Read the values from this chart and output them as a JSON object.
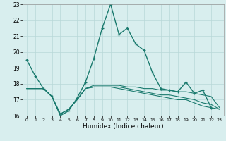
{
  "xlabel": "Humidex (Indice chaleur)",
  "xlim": [
    -0.5,
    23.5
  ],
  "ylim": [
    16,
    23
  ],
  "yticks": [
    16,
    17,
    18,
    19,
    20,
    21,
    22,
    23
  ],
  "xticks": [
    0,
    1,
    2,
    3,
    4,
    5,
    6,
    7,
    8,
    9,
    10,
    11,
    12,
    13,
    14,
    15,
    16,
    17,
    18,
    19,
    20,
    21,
    22,
    23
  ],
  "bg_color": "#d8eeee",
  "line_color": "#1a7a6e",
  "grid_color": "#b8d8d8",
  "line1": [
    19.5,
    18.5,
    17.7,
    17.2,
    16.0,
    16.3,
    17.1,
    18.1,
    19.6,
    21.5,
    23.0,
    21.1,
    21.5,
    20.5,
    20.1,
    18.7,
    17.7,
    17.6,
    17.5,
    18.1,
    17.4,
    17.6,
    16.5,
    null
  ],
  "line2": [
    17.7,
    17.7,
    17.7,
    17.2,
    16.1,
    16.4,
    17.0,
    17.7,
    17.9,
    17.9,
    17.9,
    17.9,
    17.8,
    17.8,
    17.7,
    17.7,
    17.6,
    17.6,
    17.5,
    17.5,
    17.4,
    17.3,
    17.2,
    16.5
  ],
  "line3": [
    17.7,
    17.7,
    17.7,
    17.2,
    16.1,
    16.4,
    17.0,
    17.7,
    17.8,
    17.8,
    17.8,
    17.8,
    17.7,
    17.6,
    17.5,
    17.4,
    17.3,
    17.3,
    17.2,
    17.1,
    17.0,
    16.8,
    16.7,
    16.4
  ],
  "line4": [
    17.7,
    17.7,
    17.7,
    17.2,
    16.1,
    16.4,
    17.0,
    17.7,
    17.8,
    17.8,
    17.8,
    17.7,
    17.6,
    17.5,
    17.4,
    17.3,
    17.2,
    17.1,
    17.0,
    17.0,
    16.8,
    16.6,
    16.5,
    16.4
  ]
}
